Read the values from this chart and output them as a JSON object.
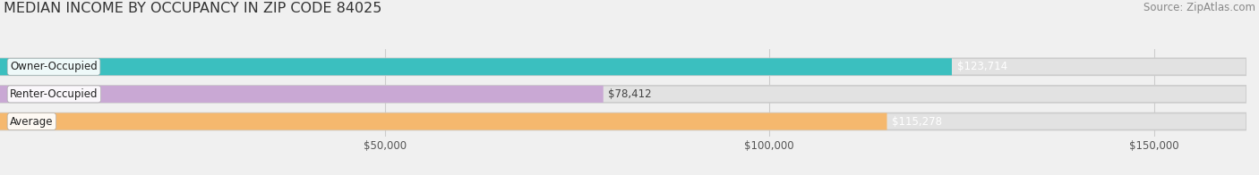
{
  "title": "MEDIAN INCOME BY OCCUPANCY IN ZIP CODE 84025",
  "source": "Source: ZipAtlas.com",
  "categories": [
    "Owner-Occupied",
    "Renter-Occupied",
    "Average"
  ],
  "values": [
    123714,
    78412,
    115278
  ],
  "bar_colors": [
    "#3bbfbf",
    "#c9a8d4",
    "#f5b86e"
  ],
  "value_label_colors": [
    "#ffffff",
    "#444444",
    "#ffffff"
  ],
  "value_labels": [
    "$123,714",
    "$78,412",
    "$115,278"
  ],
  "xmax": 162000,
  "xtick_positions": [
    50000,
    100000,
    150000
  ],
  "xtick_labels": [
    "$50,000",
    "$100,000",
    "$150,000"
  ],
  "background_color": "#f0f0f0",
  "bar_bg_color": "#e2e2e2",
  "title_fontsize": 11.5,
  "tick_fontsize": 8.5,
  "source_fontsize": 8.5,
  "bar_label_fontsize": 8.5,
  "value_fontsize": 8.5
}
